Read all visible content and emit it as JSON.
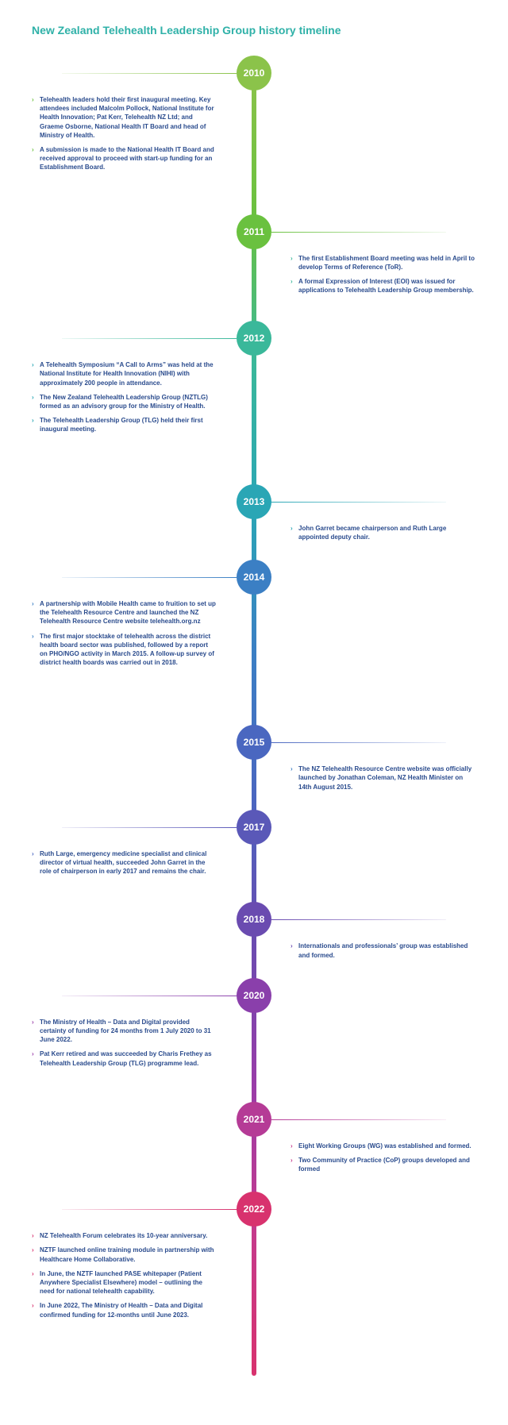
{
  "title": "New Zealand Telehealth Leadership Group history timeline",
  "title_color": "#2fb1a8",
  "spine_gradient": [
    "#8bc34a",
    "#6ac13f",
    "#3ab89a",
    "#2aa6b5",
    "#3b7fc4",
    "#4a67c0",
    "#6a4bb0",
    "#9a3ca8",
    "#c53a8c",
    "#d8326e"
  ],
  "text_color": "#2a4b8d",
  "chevron_color_map": {
    "2010": "#6ac13f",
    "2011": "#3ab89a",
    "2012": "#2aa6b5",
    "2013": "#2aa6b5",
    "2014": "#3b7fc4",
    "2015": "#3b7fc4",
    "2017": "#4a67c0",
    "2018": "#6a4bb0",
    "2020": "#9a3ca8",
    "2021": "#c53a8c",
    "2022": "#d8326e"
  },
  "years": [
    {
      "year": "2010",
      "color": "#8bc34a",
      "gap_after": 90,
      "left": [
        "Telehealth leaders hold their first inaugural meeting. Key attendees included Malcolm Pollock, National Institute for Health Innovation; Pat Kerr, Telehealth NZ Ltd; and Graeme Osborne, National Health IT Board and head of Ministry of Health.",
        "A submission is made to the National Health IT Board and received approval to proceed with start-up funding for an Establishment Board."
      ],
      "right": []
    },
    {
      "year": "2011",
      "color": "#6ac13f",
      "gap_after": 70,
      "left": [],
      "right": [
        "The first Establishment Board meeting was held in April to develop Terms of Reference (ToR).",
        "A formal Expression of Interest (EOI) was issued for applications to Telehealth Leadership Group membership."
      ]
    },
    {
      "year": "2012",
      "color": "#3ab89a",
      "gap_after": 100,
      "left": [
        "A Telehealth Symposium “A Call to Arms” was held at the National Institute for Health Innovation (NIHI) with approximately 200 people in attendance.",
        "The New Zealand Telehealth Leadership Group (NZTLG) formed as an advisory group for the Ministry of Health.",
        "The Telehealth Leadership Group (TLG) held their first inaugural meeting."
      ],
      "right": []
    },
    {
      "year": "2013",
      "color": "#2aa6b5",
      "gap_after": 60,
      "left": [],
      "right": [
        "John Garret became chairperson and Ruth Large appointed deputy chair."
      ]
    },
    {
      "year": "2014",
      "color": "#3b7fc4",
      "gap_after": 110,
      "left": [
        "A partnership with Mobile Health came to fruition to set up the Telehealth Resource Centre and launched the NZ Telehealth Resource Centre website telehealth.org.nz",
        "The first major stocktake of telehealth across the district health board sector was published, followed by a report on PHO/NGO activity in March 2015. A follow-up survey of district health boards was carried out in 2018."
      ],
      "right": []
    },
    {
      "year": "2015",
      "color": "#4a67c0",
      "gap_after": 60,
      "left": [],
      "right": [
        "The NZ Telehealth Resource Centre website was officially launched by Jonathan Coleman, NZ Health Minister on 14th August 2015."
      ]
    },
    {
      "year": "2017",
      "color": "#5a58b8",
      "gap_after": 70,
      "left": [
        "Ruth Large, emergency medicine specialist and clinical director of virtual health, succeeded John Garret in the role of chairperson in early 2017 and remains the chair."
      ],
      "right": []
    },
    {
      "year": "2018",
      "color": "#6a4bb0",
      "gap_after": 60,
      "left": [],
      "right": [
        "Internationals and professionals’ group was established and formed."
      ]
    },
    {
      "year": "2020",
      "color": "#8a3fab",
      "gap_after": 80,
      "left": [
        "The Ministry of Health – Data and Digital provided certainty of funding for 24 months from 1 July 2020 to 31 June 2022.",
        "Pat Kerr retired and was succeeded by Charis Frethey as Telehealth Leadership Group (TLG) programme lead."
      ],
      "right": []
    },
    {
      "year": "2021",
      "color": "#b53b96",
      "gap_after": 60,
      "left": [],
      "right": [
        "Eight Working Groups (WG) was established and formed.",
        "Two Community of Practice (CoP) groups developed and formed"
      ]
    },
    {
      "year": "2022",
      "color": "#d8326e",
      "gap_after": 130,
      "left": [
        "NZ Telehealth Forum celebrates its 10-year anniversary.",
        "NZTF launched online training module in partnership with Healthcare Home Collaborative.",
        "In June, the NZTF launched PASE whitepaper (Patient Anywhere Specialist Elsewhere) model – outlining the need for national telehealth capability.",
        "In June 2022, The Ministry of Health – Data and Digital confirmed funding for 12-months until June 2023."
      ],
      "right": []
    }
  ]
}
